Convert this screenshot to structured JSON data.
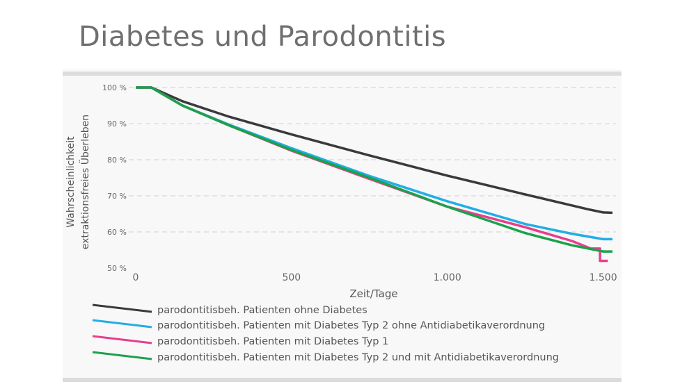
{
  "title": "Diabetes und Parodontitis",
  "chart_data": {
    "type": "line",
    "title": "Diabetes und Parodontitis",
    "xlabel": "Zeit/Tage",
    "ylabel_lines": [
      "Wahrscheinlichkeit",
      "extraktionsfreies Überleben"
    ],
    "xlim": [
      0,
      1530
    ],
    "ylim": [
      50,
      100
    ],
    "x_ticks": [
      0,
      500,
      1000,
      1500
    ],
    "x_tick_labels": [
      "0",
      "500",
      "1.000",
      "1.500"
    ],
    "y_ticks": [
      100,
      90,
      80,
      70,
      60,
      50
    ],
    "y_tick_labels": [
      "100 %",
      "90 %",
      "80 %",
      "70 %",
      "60 %",
      "50 %"
    ],
    "grid": true,
    "legend_position": "bottom",
    "series": [
      {
        "name": "parodontitisbeh. Patienten ohne Diabetes",
        "color": "#3a3a3c",
        "x": [
          0,
          50,
          150,
          300,
          500,
          750,
          1000,
          1250,
          1450,
          1500,
          1530
        ],
        "y": [
          100,
          100,
          96.2,
          91.9,
          87.0,
          81.2,
          75.6,
          70.4,
          66.3,
          65.4,
          65.3
        ]
      },
      {
        "name": "parodontitisbeh. Patienten mit Diabetes Typ 2 ohne Antidiabetikaverordnung",
        "color": "#21aee6",
        "x": [
          0,
          50,
          150,
          300,
          500,
          750,
          1000,
          1250,
          1400,
          1500,
          1530
        ],
        "y": [
          100,
          100,
          95.0,
          89.7,
          83.2,
          75.5,
          68.5,
          62.2,
          59.5,
          58.0,
          58.0
        ]
      },
      {
        "name": "parodontitisbeh. Patienten mit Diabetes Typ 1",
        "color": "#e83e8c",
        "x": [
          0,
          50,
          150,
          300,
          500,
          750,
          1000,
          1250,
          1400,
          1460,
          1490,
          1490,
          1515
        ],
        "y": [
          100,
          100,
          95.0,
          89.5,
          82.5,
          74.7,
          67.0,
          61.3,
          57.5,
          55.4,
          55.4,
          52.0,
          52.0
        ]
      },
      {
        "name": "parodontitisbeh. Patienten mit Diabetes Typ 2 und mit Antidiabetikaverordnung",
        "color": "#1aa24a",
        "x": [
          0,
          50,
          150,
          300,
          500,
          750,
          1000,
          1250,
          1400,
          1500,
          1530
        ],
        "y": [
          100,
          100,
          95.0,
          89.5,
          82.7,
          75.0,
          67.0,
          59.7,
          56.3,
          54.6,
          54.6
        ]
      }
    ]
  }
}
